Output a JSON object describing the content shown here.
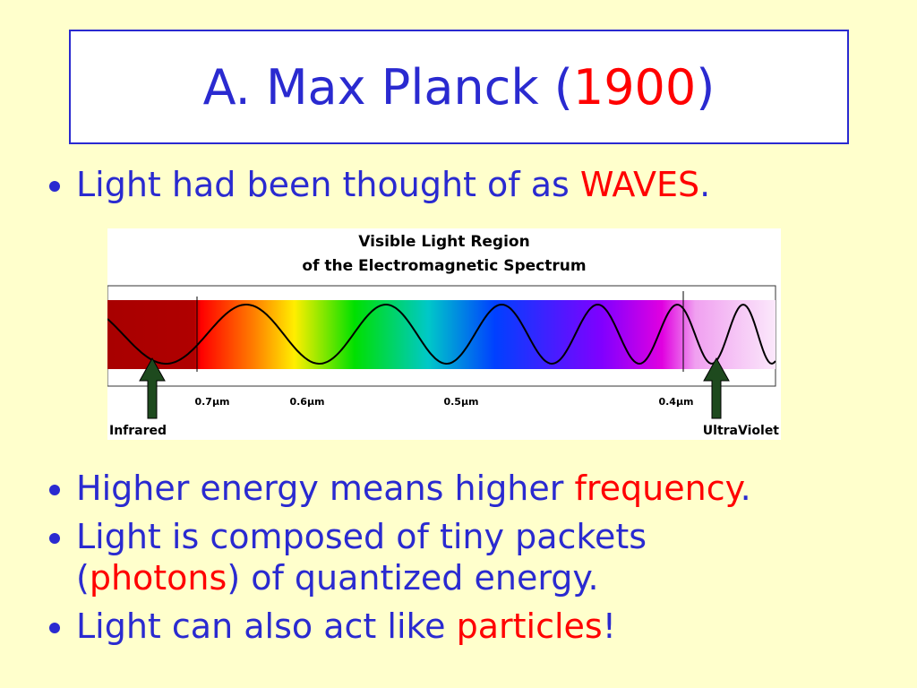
{
  "title": [
    {
      "text": "A. Max Planck (",
      "color": "#2a2ad0"
    },
    {
      "text": "1900",
      "color": "#ff0000"
    },
    {
      "text": ")",
      "color": "#2a2ad0"
    }
  ],
  "bullets": [
    [
      {
        "text": "Light had been thought of as ",
        "color": "#2a2ad0"
      },
      {
        "text": "WAVES",
        "color": "#ff0000"
      },
      {
        "text": ".",
        "color": "#2a2ad0"
      }
    ],
    [
      {
        "text": "Higher energy means higher ",
        "color": "#2a2ad0"
      },
      {
        "text": "frequency",
        "color": "#ff0000"
      },
      {
        "text": ".",
        "color": "#2a2ad0"
      }
    ],
    [
      {
        "text": "Light is composed of tiny packets (",
        "color": "#2a2ad0"
      },
      {
        "text": "photons",
        "color": "#ff0000"
      },
      {
        "text": ") of quantized energy.",
        "color": "#2a2ad0"
      }
    ],
    [
      {
        "text": "Light can also act like ",
        "color": "#2a2ad0"
      },
      {
        "text": "particles",
        "color": "#ff0000"
      },
      {
        "text": "!",
        "color": "#2a2ad0"
      }
    ]
  ],
  "figure": {
    "title_lines": [
      "Visible Light Region",
      "of the Electromagnetic Spectrum"
    ],
    "scale_labels": [
      "0.7µm",
      "0.6µm",
      "0.5µm",
      "0.4µm"
    ],
    "left_label": "Infrared",
    "right_label": "UltraViolet"
  }
}
